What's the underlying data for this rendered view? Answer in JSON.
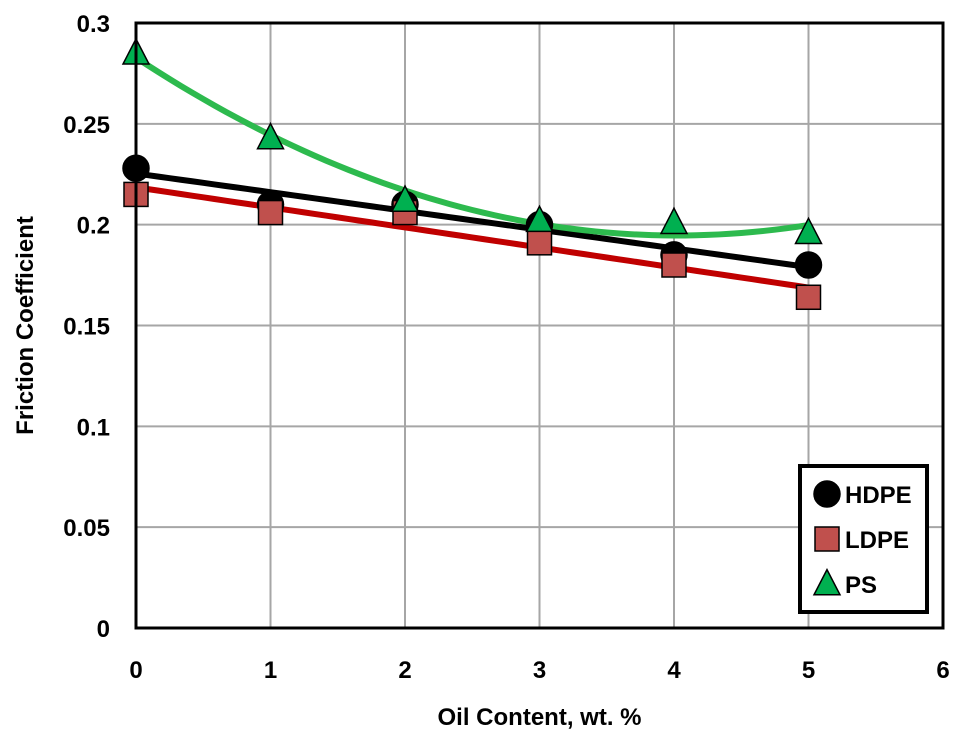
{
  "chart_data": {
    "type": "scatter",
    "title": "",
    "xlabel": "Oil Content, wt. %",
    "ylabel": "Friction Coefficient",
    "xlim": [
      0,
      6
    ],
    "ylim": [
      0,
      0.3
    ],
    "x_ticks": [
      0,
      1,
      2,
      3,
      4,
      5,
      6
    ],
    "y_ticks": [
      0,
      0.05,
      0.1,
      0.15,
      0.2,
      0.25,
      0.3
    ],
    "x_tick_labels": [
      "0",
      "1",
      "2",
      "3",
      "4",
      "5",
      "6"
    ],
    "y_tick_labels": [
      "0",
      "0.05",
      "0.1",
      "0.15",
      "0.2",
      "0.25",
      "0.3"
    ],
    "grid": true,
    "legend_position": "bottom-right",
    "series": [
      {
        "name": "HDPE",
        "marker": "circle",
        "marker_color": "#000000",
        "trend_color": "#000000",
        "trend": "linear",
        "x": [
          0,
          1,
          2,
          3,
          4,
          5
        ],
        "y": [
          0.228,
          0.21,
          0.21,
          0.2,
          0.185,
          0.18
        ]
      },
      {
        "name": "LDPE",
        "marker": "square",
        "marker_color": "#c0504d",
        "trend_color": "#c00000",
        "trend": "linear",
        "x": [
          0,
          1,
          2,
          3,
          4,
          5
        ],
        "y": [
          0.215,
          0.206,
          0.206,
          0.191,
          0.18,
          0.164
        ]
      },
      {
        "name": "PS",
        "marker": "triangle",
        "marker_color": "#00b050",
        "trend_color": "#2dba4e",
        "trend": "quadratic",
        "x": [
          0,
          1,
          2,
          3,
          4,
          5
        ],
        "y": [
          0.285,
          0.243,
          0.212,
          0.202,
          0.201,
          0.196
        ]
      }
    ]
  }
}
